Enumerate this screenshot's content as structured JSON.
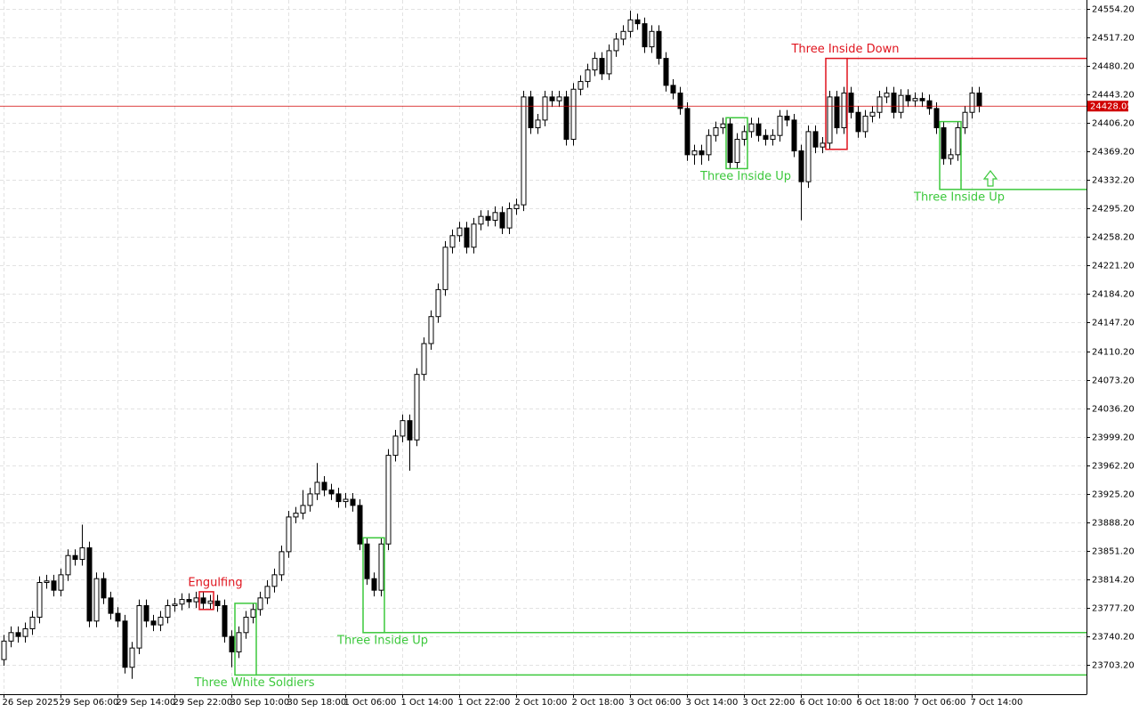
{
  "chart_data": {
    "type": "candlestick",
    "categories": [
      "26 Sep 2025",
      null,
      null,
      null,
      null,
      null,
      null,
      null,
      "29 Sep 06:00",
      null,
      null,
      null,
      null,
      null,
      null,
      null,
      "29 Sep 14:00",
      null,
      null,
      null,
      null,
      null,
      null,
      null,
      "29 Sep 22:00",
      null,
      null,
      null,
      null,
      null,
      null,
      null,
      "30 Sep 10:00",
      null,
      null,
      null,
      null,
      null,
      null,
      null,
      "30 Sep 18:00",
      null,
      null,
      null,
      null,
      null,
      null,
      null,
      "1 Oct 06:00",
      null,
      null,
      null,
      null,
      null,
      null,
      null,
      "1 Oct 14:00",
      null,
      null,
      null,
      null,
      null,
      null,
      null,
      "1 Oct 22:00",
      null,
      null,
      null,
      null,
      null,
      null,
      null,
      "2 Oct 10:00",
      null,
      null,
      null,
      null,
      null,
      null,
      null,
      "2 Oct 18:00",
      null,
      null,
      null,
      null,
      null,
      null,
      null,
      "3 Oct 06:00",
      null,
      null,
      null,
      null,
      null,
      null,
      null,
      "3 Oct 14:00",
      null,
      null,
      null,
      null,
      null,
      null,
      null,
      "3 Oct 22:00",
      null,
      null,
      null,
      null,
      null,
      null,
      null,
      "6 Oct 10:00",
      null,
      null,
      null,
      null,
      null,
      null,
      null,
      "6 Oct 18:00",
      null,
      null,
      null,
      null,
      null,
      null,
      null,
      "7 Oct 06:00",
      null,
      null,
      null,
      null,
      null,
      null,
      null,
      "7 Oct 14:00",
      null
    ],
    "open": [
      23710,
      23734,
      23745,
      23740,
      23750,
      23765,
      23810,
      23812,
      23800,
      23820,
      23845,
      23840,
      23855,
      23760,
      23815,
      23790,
      23770,
      23760,
      23700,
      23725,
      23780,
      23760,
      23755,
      23765,
      23780,
      23782,
      23788,
      23785,
      23790,
      23783,
      23786,
      23780,
      23740,
      23720,
      23745,
      23765,
      23775,
      23790,
      23805,
      23820,
      23850,
      23895,
      23900,
      23910,
      23925,
      23940,
      23930,
      23925,
      23915,
      23918,
      23910,
      23860,
      23815,
      23800,
      23860,
      23975,
      24000,
      24020,
      23995,
      24080,
      24120,
      24155,
      24190,
      24245,
      24260,
      24270,
      24245,
      24275,
      24285,
      24280,
      24290,
      24270,
      24295,
      24300,
      24440,
      24400,
      24410,
      24440,
      24435,
      24440,
      24385,
      24450,
      24460,
      24475,
      24490,
      24470,
      24500,
      24515,
      24525,
      24540,
      24535,
      24505,
      24525,
      24490,
      24455,
      24445,
      24425,
      24365,
      24370,
      24365,
      24390,
      24400,
      24405,
      24355,
      24385,
      24395,
      24405,
      24390,
      24385,
      24390,
      24415,
      24410,
      24370,
      24330,
      24395,
      24375,
      24380,
      24440,
      24400,
      24445,
      24420,
      24395,
      24415,
      24420,
      24440,
      24445,
      24420,
      24442,
      24435,
      24438,
      24435,
      24425,
      24400,
      24360,
      24365,
      24400,
      24420,
      24445
    ],
    "high": [
      23742,
      23753,
      23753,
      23758,
      23773,
      23818,
      23820,
      23820,
      23828,
      23853,
      23853,
      23885,
      23863,
      23823,
      23823,
      23798,
      23778,
      23768,
      23733,
      23788,
      23788,
      23768,
      23773,
      23788,
      23790,
      23796,
      23796,
      23798,
      23798,
      23794,
      23794,
      23788,
      23748,
      23753,
      23773,
      23783,
      23798,
      23813,
      23828,
      23858,
      23903,
      23908,
      23930,
      23933,
      23965,
      23948,
      23938,
      23933,
      23926,
      23926,
      23918,
      23868,
      23823,
      23868,
      23983,
      24008,
      24028,
      24028,
      24088,
      24128,
      24163,
      24198,
      24253,
      24268,
      24278,
      24278,
      24283,
      24293,
      24293,
      24298,
      24298,
      24303,
      24308,
      24448,
      24448,
      24418,
      24448,
      24448,
      24448,
      24448,
      24458,
      24468,
      24483,
      24498,
      24498,
      24508,
      24523,
      24533,
      24552,
      24548,
      24543,
      24533,
      24533,
      24498,
      24463,
      24453,
      24433,
      24378,
      24378,
      24398,
      24408,
      24413,
      24413,
      24393,
      24403,
      24413,
      24413,
      24398,
      24398,
      24423,
      24423,
      24418,
      24378,
      24403,
      24403,
      24388,
      24448,
      24448,
      24453,
      24453,
      24428,
      24423,
      24428,
      24448,
      24453,
      24453,
      24450,
      24450,
      24446,
      24446,
      24443,
      24433,
      24408,
      24373,
      24408,
      24428,
      24453,
      24453
    ],
    "low": [
      23702,
      23726,
      23732,
      23732,
      23742,
      23757,
      23802,
      23792,
      23792,
      23812,
      23832,
      23832,
      23752,
      23752,
      23782,
      23762,
      23752,
      23692,
      23685,
      23717,
      23752,
      23747,
      23747,
      23757,
      23772,
      23774,
      23777,
      23777,
      23775,
      23775,
      23772,
      23732,
      23700,
      23712,
      23737,
      23757,
      23767,
      23782,
      23797,
      23812,
      23842,
      23887,
      23892,
      23902,
      23917,
      23922,
      23917,
      23907,
      23907,
      23902,
      23852,
      23807,
      23792,
      23792,
      23852,
      23967,
      23992,
      23955,
      23987,
      24072,
      24112,
      24147,
      24182,
      24237,
      24252,
      24237,
      24237,
      24267,
      24272,
      24272,
      24262,
      24262,
      24287,
      24292,
      24392,
      24392,
      24402,
      24427,
      24427,
      24377,
      24377,
      24442,
      24452,
      24467,
      24462,
      24462,
      24492,
      24507,
      24517,
      24527,
      24497,
      24497,
      24482,
      24447,
      24437,
      24417,
      24357,
      24352,
      24352,
      24357,
      24382,
      24392,
      24347,
      24347,
      24377,
      24387,
      24382,
      24377,
      24377,
      24382,
      24402,
      24362,
      24280,
      24322,
      24367,
      24367,
      24372,
      24392,
      24392,
      24412,
      24387,
      24387,
      24407,
      24412,
      24432,
      24412,
      24412,
      24427,
      24427,
      24427,
      24417,
      24392,
      24352,
      24352,
      24357,
      24392,
      24412,
      24420
    ],
    "close": [
      23734,
      23745,
      23740,
      23750,
      23765,
      23810,
      23812,
      23800,
      23820,
      23845,
      23840,
      23855,
      23760,
      23815,
      23790,
      23770,
      23760,
      23700,
      23725,
      23780,
      23760,
      23755,
      23765,
      23780,
      23782,
      23788,
      23785,
      23790,
      23783,
      23786,
      23780,
      23740,
      23720,
      23745,
      23765,
      23775,
      23790,
      23805,
      23820,
      23850,
      23895,
      23900,
      23910,
      23925,
      23940,
      23930,
      23925,
      23915,
      23918,
      23910,
      23860,
      23815,
      23800,
      23860,
      23975,
      24000,
      24020,
      23995,
      24080,
      24120,
      24155,
      24190,
      24245,
      24260,
      24270,
      24245,
      24275,
      24285,
      24280,
      24290,
      24270,
      24295,
      24300,
      24440,
      24400,
      24410,
      24440,
      24435,
      24440,
      24385,
      24450,
      24460,
      24475,
      24490,
      24470,
      24500,
      24515,
      24525,
      24540,
      24535,
      24505,
      24525,
      24490,
      24455,
      24445,
      24425,
      24365,
      24370,
      24365,
      24390,
      24400,
      24405,
      24355,
      24385,
      24395,
      24405,
      24390,
      24385,
      24390,
      24415,
      24410,
      24370,
      24330,
      24395,
      24375,
      24380,
      24440,
      24400,
      24445,
      24420,
      24395,
      24415,
      24420,
      24440,
      24445,
      24420,
      24442,
      24435,
      24438,
      24435,
      24425,
      24400,
      24360,
      24365,
      24400,
      24420,
      24445,
      24428
    ],
    "up_color": "#ffffff",
    "down_color": "#000000",
    "ylim": [
      23665.1,
      24565.75
    ],
    "yticks": [
      {
        "value": 24554.2,
        "label": "24554.20"
      },
      {
        "value": 24517.2,
        "label": "24517.20"
      },
      {
        "value": 24480.2,
        "label": "24480.20"
      },
      {
        "value": 24443.2,
        "label": "24443.20"
      },
      {
        "value": 24406.2,
        "label": "24406.20"
      },
      {
        "value": 24369.2,
        "label": "24369.20"
      },
      {
        "value": 24332.2,
        "label": "24332.20"
      },
      {
        "value": 24295.2,
        "label": "24295.20"
      },
      {
        "value": 24258.2,
        "label": "24258.20"
      },
      {
        "value": 24221.2,
        "label": "24221.20"
      },
      {
        "value": 24184.2,
        "label": "24184.20"
      },
      {
        "value": 24147.2,
        "label": "24147.20"
      },
      {
        "value": 24110.2,
        "label": "24110.20"
      },
      {
        "value": 24073.2,
        "label": "24073.20"
      },
      {
        "value": 24036.2,
        "label": "24036.20"
      },
      {
        "value": 23999.2,
        "label": "23999.20"
      },
      {
        "value": 23962.2,
        "label": "23962.20"
      },
      {
        "value": 23925.2,
        "label": "23925.20"
      },
      {
        "value": 23888.2,
        "label": "23888.20"
      },
      {
        "value": 23851.2,
        "label": "23851.20"
      },
      {
        "value": 23814.2,
        "label": "23814.20"
      },
      {
        "value": 23777.2,
        "label": "23777.20"
      },
      {
        "value": 23740.2,
        "label": "23740.20"
      },
      {
        "value": 23703.2,
        "label": "23703.20"
      }
    ],
    "grid": true,
    "last_price": 24428.05,
    "last_price_color": "#d00000",
    "patterns": [
      {
        "text": "Engulfing",
        "color": "#e0141e",
        "from": 28,
        "to": 29
      },
      {
        "text": "Three White Soldiers",
        "color": "#3cc83c",
        "from": 33,
        "to": 35,
        "level": 23690
      },
      {
        "text": "Three Inside Up",
        "color": "#3cc83c",
        "from": 51,
        "to": 53,
        "level": 23745
      },
      {
        "text": "Three Inside Up",
        "color": "#3cc83c",
        "from": 102,
        "to": 104
      },
      {
        "text": "Three Inside Down",
        "color": "#e0141e",
        "from": 116,
        "to": 118,
        "level": 24490
      },
      {
        "text": "Three Inside Up",
        "color": "#3cc83c",
        "from": 132,
        "to": 134,
        "level": 24320
      }
    ]
  }
}
